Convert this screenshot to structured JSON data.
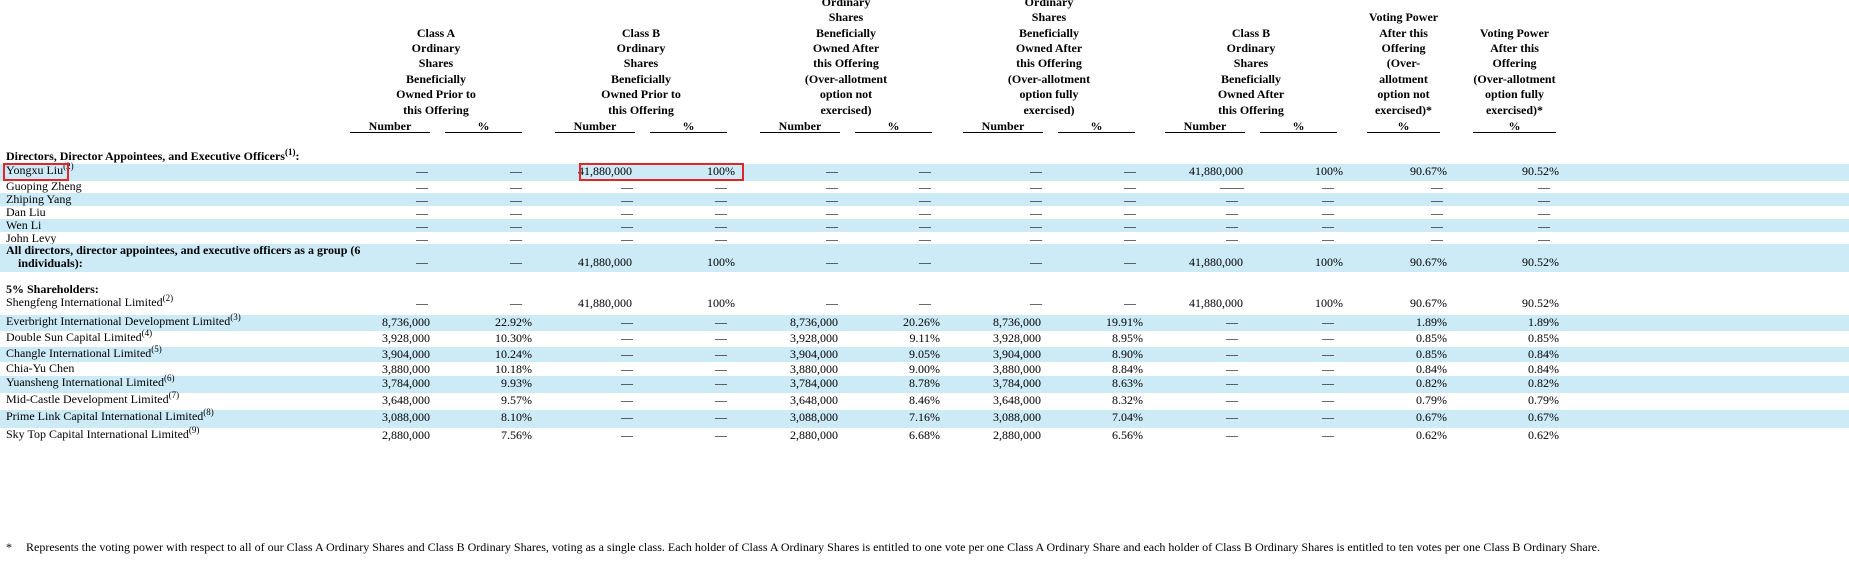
{
  "headers": [
    {
      "title": "Class A\nOrdinary\nShares\nBeneficially\nOwned Prior to\nthis Offering",
      "sub": [
        "Number",
        "%"
      ]
    },
    {
      "title": "Class B\nOrdinary\nShares\nBeneficially\nOwned Prior to\nthis Offering",
      "sub": [
        "Number",
        "%"
      ]
    },
    {
      "title": "Class A\nOrdinary\nShares\nBeneficially\nOwned After\nthis Offering\n(Over-allotment\noption not\nexercised)",
      "sub": [
        "Number",
        "%"
      ]
    },
    {
      "title": "Class A\nOrdinary\nShares\nBeneficially\nOwned After\nthis Offering\n(Over-allotment\noption fully\nexercised)",
      "sub": [
        "Number",
        "%"
      ]
    },
    {
      "title": "Class B\nOrdinary\nShares\nBeneficially\nOwned After\nthis Offering",
      "sub": [
        "Number",
        "%"
      ]
    },
    {
      "title": "Voting Power\nAfter this\nOffering\n(Over-allotment\noption not\nexercised)*",
      "sub": [
        "%"
      ]
    },
    {
      "title": "Voting Power\nAfter this\nOffering\n(Over-allotment\noption fully\nexercised)*",
      "sub": [
        "%"
      ]
    }
  ],
  "sections": {
    "directors": "Directors, Director Appointees, and Executive Officers",
    "directors_note": "(1)",
    "directors_suffix": ":",
    "holders": "5% Shareholders:"
  },
  "rows": [
    {
      "name": "Yongxu Liu",
      "note": "(2)",
      "values": [
        "—",
        "—",
        "41,880,000",
        "100%",
        "—",
        "—",
        "—",
        "—",
        "41,880,000",
        "100%",
        "90.67%",
        "90.52%"
      ]
    },
    {
      "name": "Guoping Zheng",
      "note": "",
      "values": [
        "—",
        "—",
        "—",
        "—",
        "—",
        "—",
        "—",
        "—",
        "——",
        "—",
        "—",
        "—"
      ]
    },
    {
      "name": "Zhiping Yang",
      "note": "",
      "values": [
        "—",
        "—",
        "—",
        "—",
        "—",
        "—",
        "—",
        "—",
        "—",
        "—",
        "—",
        "—"
      ]
    },
    {
      "name": "Dan Liu",
      "note": "",
      "values": [
        "—",
        "—",
        "—",
        "—",
        "—",
        "—",
        "—",
        "—",
        "—",
        "—",
        "—",
        "—"
      ]
    },
    {
      "name": "Wen Li",
      "note": "",
      "values": [
        "—",
        "—",
        "—",
        "—",
        "—",
        "—",
        "—",
        "—",
        "—",
        "—",
        "—",
        "—"
      ]
    },
    {
      "name": "John Levy",
      "note": "",
      "values": [
        "—",
        "—",
        "—",
        "—",
        "—",
        "—",
        "—",
        "—",
        "—",
        "—",
        "—",
        "—"
      ]
    },
    {
      "name": "All directors, director appointees, and executive officers as a group (6",
      "name2": "individuals):",
      "note": "",
      "values": [
        "—",
        "—",
        "41,880,000",
        "100%",
        "—",
        "—",
        "—",
        "—",
        "41,880,000",
        "100%",
        "90.67%",
        "90.52%"
      ]
    },
    {
      "name": "Shengfeng International Limited",
      "note": "(2)",
      "values": [
        "—",
        "—",
        "41,880,000",
        "100%",
        "—",
        "—",
        "—",
        "—",
        "41,880,000",
        "100%",
        "90.67%",
        "90.52%"
      ]
    },
    {
      "name": "Everbright International Development Limited",
      "note": "(3)",
      "values": [
        "8,736,000",
        "22.92%",
        "—",
        "—",
        "8,736,000",
        "20.26%",
        "8,736,000",
        "19.91%",
        "—",
        "—",
        "1.89%",
        "1.89%"
      ]
    },
    {
      "name": "Double Sun Capital Limited",
      "note": "(4)",
      "values": [
        "3,928,000",
        "10.30%",
        "—",
        "—",
        "3,928,000",
        "9.11%",
        "3,928,000",
        "8.95%",
        "—",
        "—",
        "0.85%",
        "0.85%"
      ]
    },
    {
      "name": "Changle International Limited",
      "note": "(5)",
      "values": [
        "3,904,000",
        "10.24%",
        "—",
        "—",
        "3,904,000",
        "9.05%",
        "3,904,000",
        "8.90%",
        "—",
        "—",
        "0.85%",
        "0.84%"
      ]
    },
    {
      "name": "Chia-Yu Chen",
      "note": "",
      "values": [
        "3,880,000",
        "10.18%",
        "—",
        "—",
        "3,880,000",
        "9.00%",
        "3,880,000",
        "8.84%",
        "—",
        "—",
        "0.84%",
        "0.84%"
      ]
    },
    {
      "name": "Yuansheng International Limited",
      "note": "(6)",
      "values": [
        "3,784,000",
        "9.93%",
        "—",
        "—",
        "3,784,000",
        "8.78%",
        "3,784,000",
        "8.63%",
        "—",
        "—",
        "0.82%",
        "0.82%"
      ]
    },
    {
      "name": "Mid-Castle Development Limited",
      "note": "(7)",
      "values": [
        "3,648,000",
        "9.57%",
        "—",
        "—",
        "3,648,000",
        "8.46%",
        "3,648,000",
        "8.32%",
        "—",
        "—",
        "0.79%",
        "0.79%"
      ]
    },
    {
      "name": "Prime Link Capital International Limited",
      "note": "(8)",
      "values": [
        "3,088,000",
        "8.10%",
        "—",
        "—",
        "3,088,000",
        "7.16%",
        "3,088,000",
        "7.04%",
        "—",
        "—",
        "0.67%",
        "0.67%"
      ]
    },
    {
      "name": "Sky Top Capital International Limited",
      "note": "(9)",
      "values": [
        "2,880,000",
        "7.56%",
        "—",
        "—",
        "2,880,000",
        "6.68%",
        "2,880,000",
        "6.56%",
        "—",
        "—",
        "0.62%",
        "0.62%"
      ]
    }
  ],
  "footnote": {
    "marker": "*",
    "text": "Represents the voting power with respect to all of our Class A Ordinary Shares and Class B Ordinary Shares, voting as a single class. Each holder of Class A Ordinary Shares is entitled to one vote per one Class A Ordinary Share and each holder of Class B Ordinary Shares is entitled to ten votes per one Class B Ordinary Share."
  },
  "colors": {
    "shade": "#cdeaf7",
    "highlight": "#e0262b"
  }
}
